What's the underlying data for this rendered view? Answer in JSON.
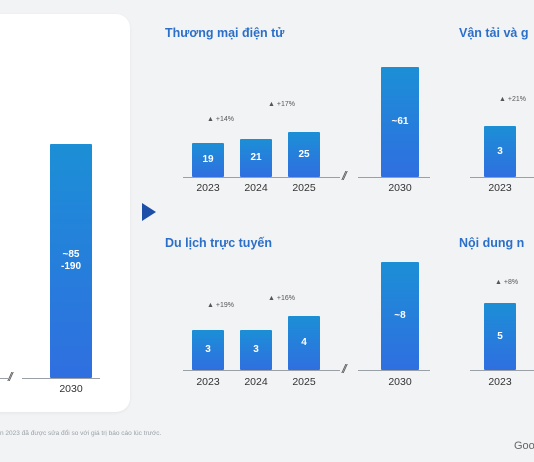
{
  "footnote": "n 2023 đã được sửa đổi so với giá trị báo cáo lúc trước.",
  "logo": "Goo",
  "chart_data": [
    {
      "type": "bar",
      "title": "",
      "categories": [
        "2030"
      ],
      "value_labels": [
        "~85\n-190"
      ],
      "values": [
        170
      ]
    },
    {
      "type": "bar",
      "title": "Thương mại điện tử",
      "categories": [
        "2023",
        "2024",
        "2025",
        "2030"
      ],
      "values": [
        19,
        21,
        25,
        61
      ],
      "value_labels": [
        "19",
        "21",
        "25",
        "~61"
      ],
      "growth_labels": [
        "▲ +14%",
        "▲ +17%"
      ]
    },
    {
      "type": "bar",
      "title": "Du lịch trực tuyến",
      "categories": [
        "2023",
        "2024",
        "2025",
        "2030"
      ],
      "values": [
        3,
        3,
        4,
        8
      ],
      "value_labels": [
        "3",
        "3",
        "4",
        "~8"
      ],
      "growth_labels": [
        "▲ +19%",
        "▲ +16%"
      ]
    },
    {
      "type": "bar",
      "title": "Vận tải và g",
      "categories": [
        "2023"
      ],
      "values": [
        3
      ],
      "value_labels": [
        "3"
      ],
      "growth_labels": [
        "▲ +21%"
      ]
    },
    {
      "type": "bar",
      "title": "Nội dung n",
      "categories": [
        "2023"
      ],
      "values": [
        5
      ],
      "value_labels": [
        "5"
      ],
      "growth_labels": [
        "▲ +8%"
      ]
    }
  ]
}
